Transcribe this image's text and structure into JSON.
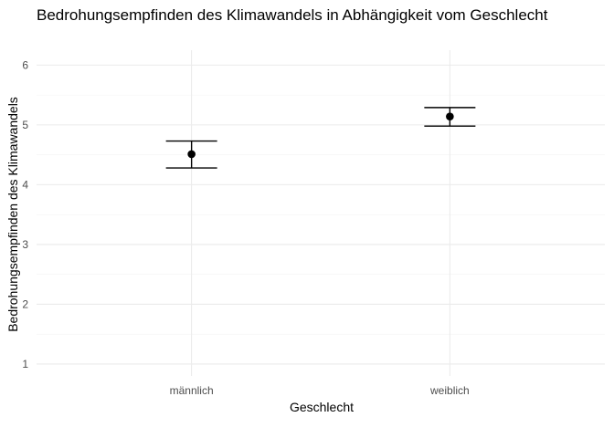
{
  "chart_data": {
    "type": "scatter",
    "title": "Bedrohungsempfinden des Klimawandels in Abhängigkeit vom Geschlecht",
    "xlabel": "Geschlecht",
    "ylabel": "Bedrohungsempfinden des Klimawandels",
    "categories": [
      "männlich",
      "weiblich"
    ],
    "values": [
      4.51,
      5.14
    ],
    "error_low": [
      4.28,
      4.98
    ],
    "error_high": [
      4.73,
      5.29
    ],
    "ylim": [
      0.8,
      6.25
    ],
    "yticks": [
      "1",
      "2",
      "3",
      "4",
      "5",
      "6"
    ],
    "grid": true,
    "color": "#000000"
  }
}
